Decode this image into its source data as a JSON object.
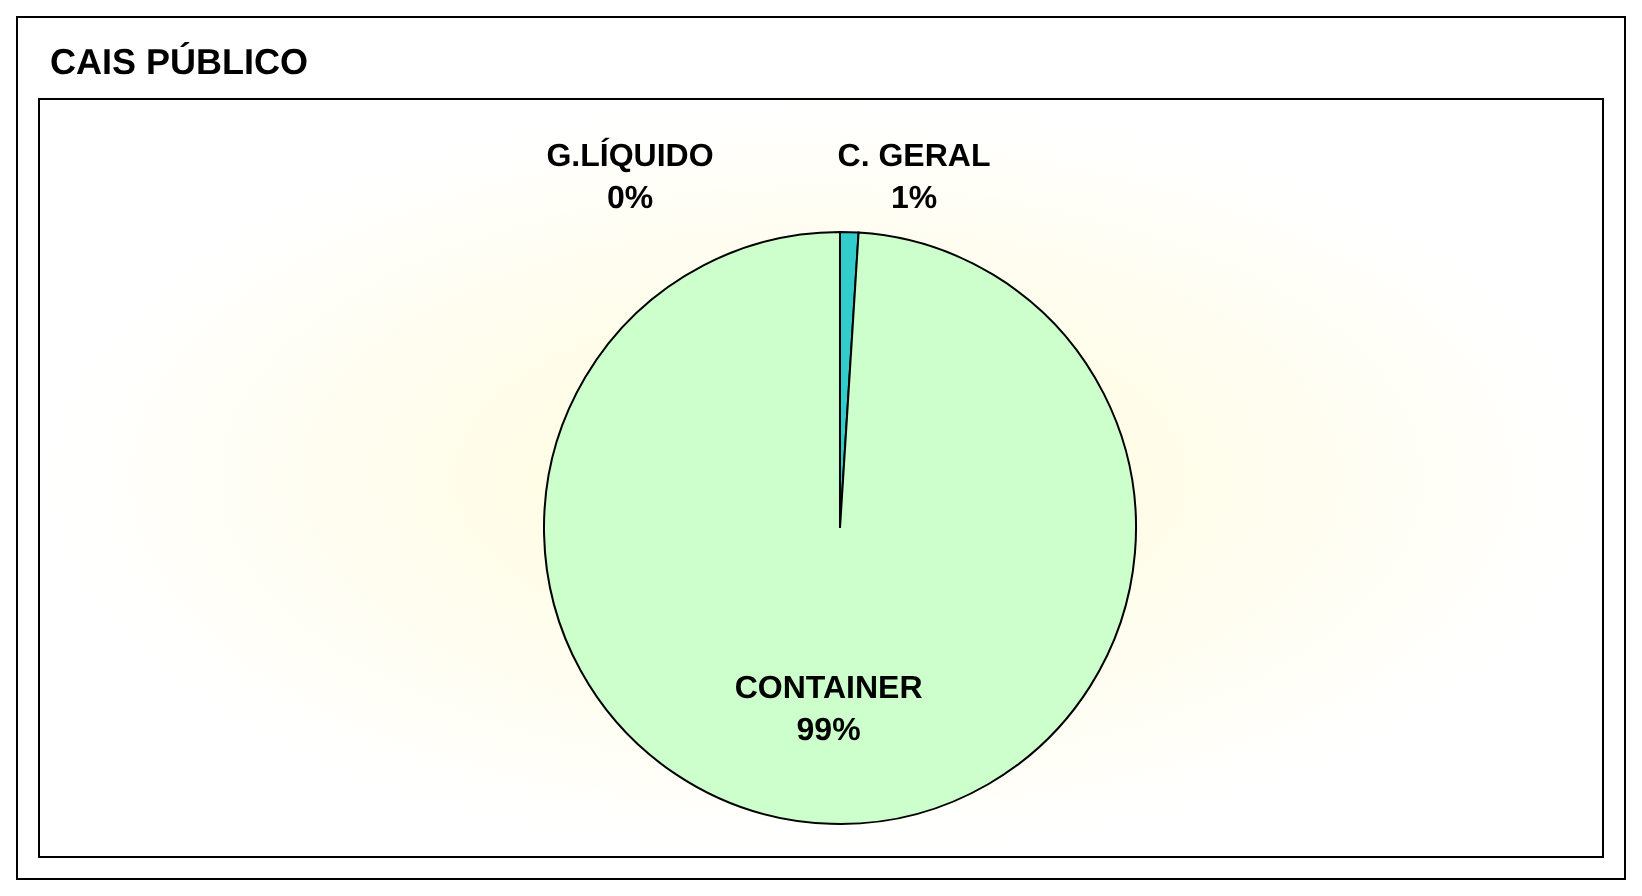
{
  "chart_data": {
    "type": "pie",
    "title": "CAIS PÚBLICO",
    "categories": [
      "C. GERAL",
      "CONTAINER",
      "G.LÍQUIDO"
    ],
    "values": [
      1,
      99,
      0
    ],
    "colors": [
      "#33cccc",
      "#ccffcc",
      "#333399"
    ],
    "value_labels": [
      "1%",
      "99%",
      "0%"
    ]
  }
}
